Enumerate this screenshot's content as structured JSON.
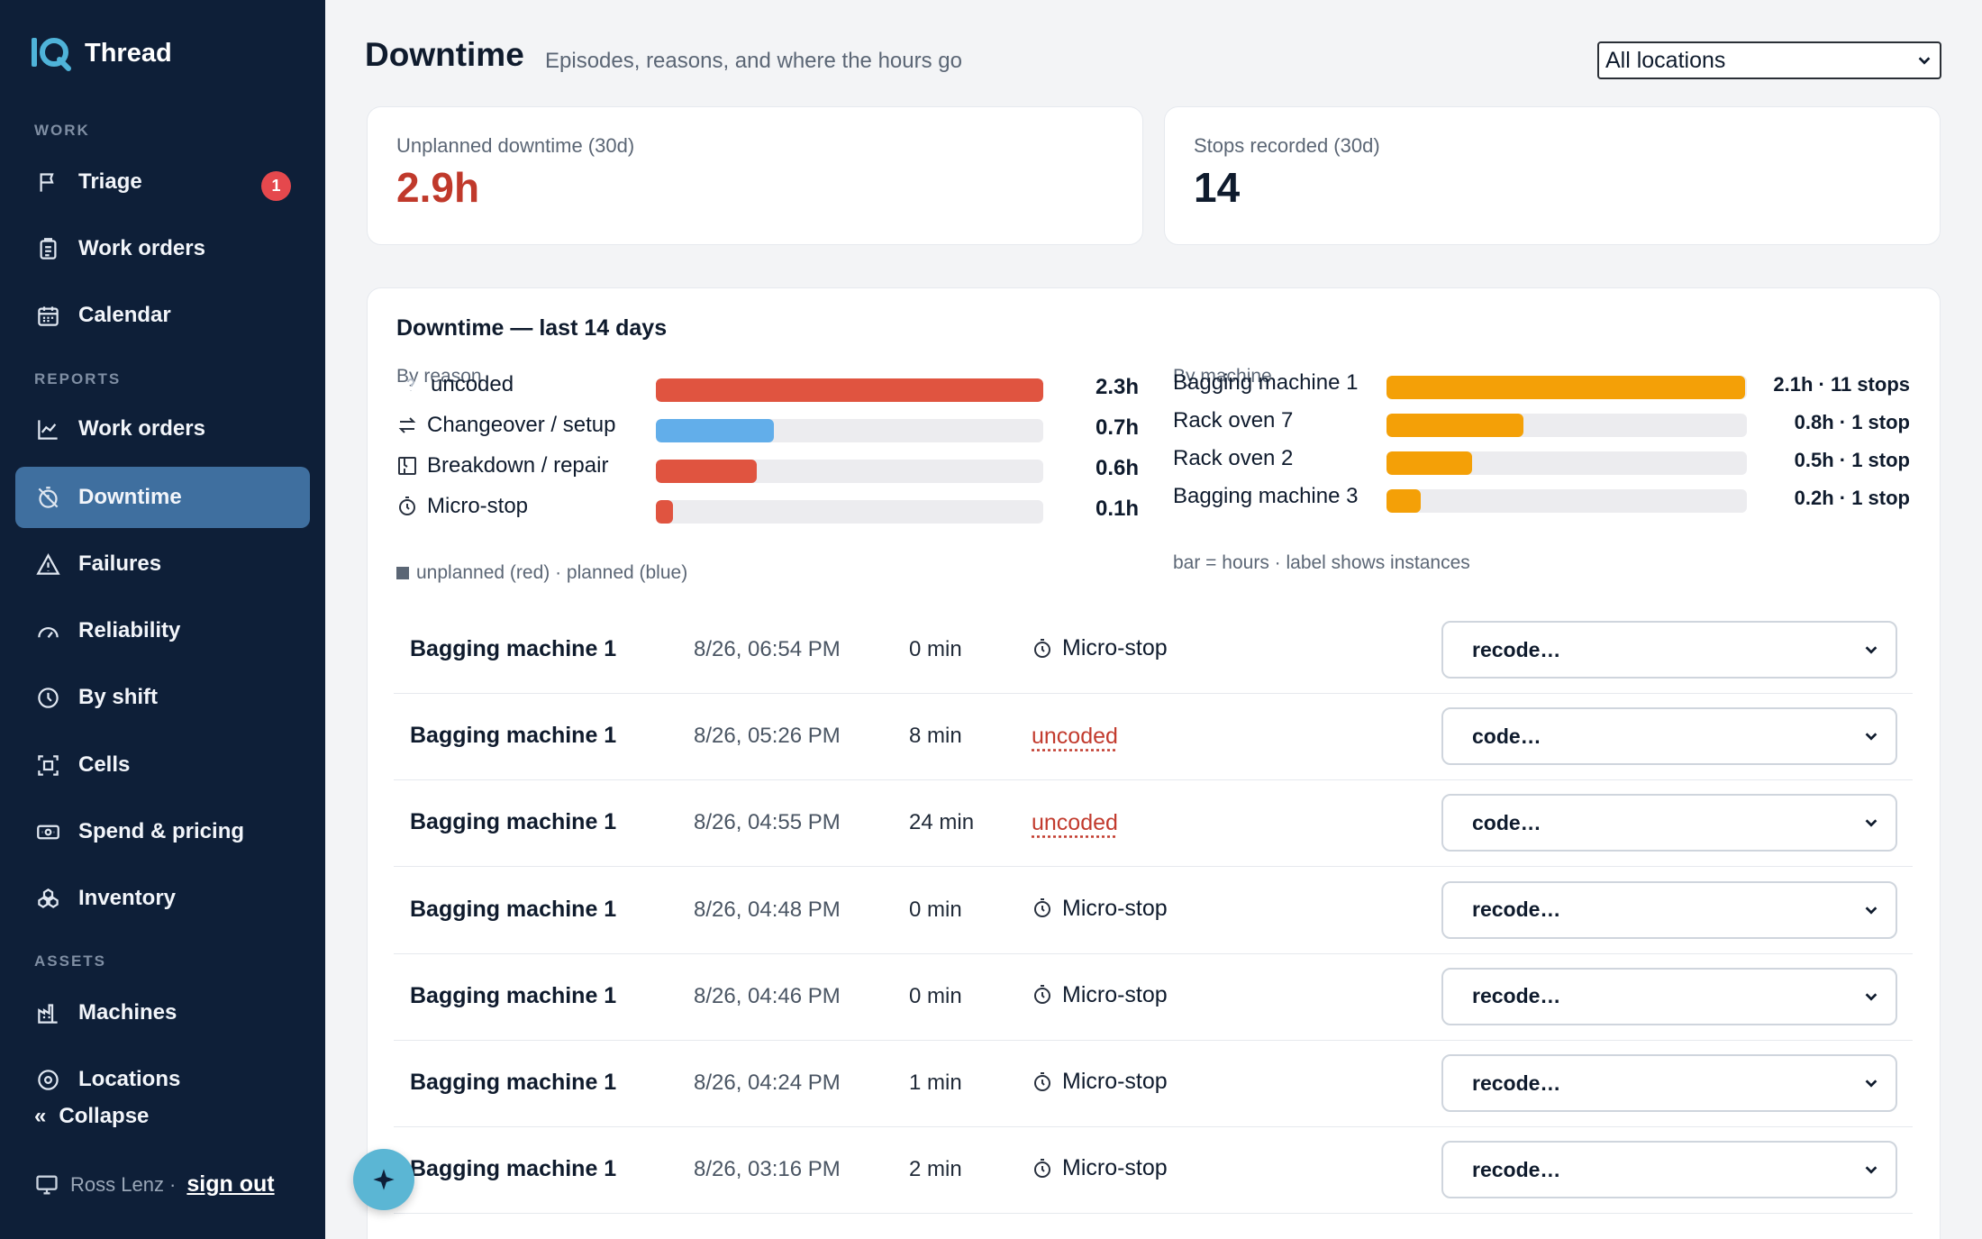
{
  "app": {
    "name": "Thread"
  },
  "sidebar": {
    "sections": {
      "work": "WORK",
      "reports": "REPORTS",
      "assets": "ASSETS"
    },
    "work_items": [
      {
        "label": "Triage",
        "icon": "flag-icon",
        "badge": "1"
      },
      {
        "label": "Work orders",
        "icon": "clipboard-icon"
      },
      {
        "label": "Calendar",
        "icon": "calendar-icon"
      }
    ],
    "report_items": [
      {
        "label": "Work orders",
        "icon": "line-chart-icon"
      },
      {
        "label": "Downtime",
        "icon": "downtime-icon",
        "active": true
      },
      {
        "label": "Failures",
        "icon": "warning-icon"
      },
      {
        "label": "Reliability",
        "icon": "gauge-icon"
      },
      {
        "label": "By shift",
        "icon": "clock-icon"
      },
      {
        "label": "Cells",
        "icon": "cells-icon"
      },
      {
        "label": "Spend & pricing",
        "icon": "money-icon"
      },
      {
        "label": "Inventory",
        "icon": "boxes-icon"
      }
    ],
    "asset_items": [
      {
        "label": "Machines",
        "icon": "factory-icon"
      },
      {
        "label": "Locations",
        "icon": "location-icon"
      }
    ],
    "collapse_label": "Collapse",
    "user_name": "Ross Lenz ·",
    "sign_out": "sign out"
  },
  "header": {
    "title": "Downtime",
    "subtitle": "Episodes, reasons, and where the hours go",
    "location_filter": "All locations"
  },
  "stats": {
    "unplanned_label": "Unplanned downtime (30d)",
    "unplanned_value": "2.9h",
    "stops_label": "Stops recorded (30d)",
    "stops_value": "14"
  },
  "breakdown": {
    "title": "Downtime — last 14 days",
    "by_reason_label": "By reason",
    "by_machine_label": "By machine",
    "reason_note": "unplanned (red) · planned (blue)",
    "machine_note": "bar = hours · label shows instances",
    "colors": {
      "unplanned": "#e05440",
      "planned": "#62aeea",
      "machine": "#f4a007"
    }
  },
  "chart_data": [
    {
      "type": "bar",
      "title": "By reason",
      "categories": [
        "uncoded",
        "Changeover / setup",
        "Breakdown / repair",
        "Micro-stop"
      ],
      "values": [
        2.3,
        0.7,
        0.6,
        0.1
      ],
      "value_labels": [
        "2.3h",
        "0.7h",
        "0.6h",
        "0.1h"
      ],
      "kinds": [
        "unplanned",
        "planned",
        "unplanned",
        "unplanned"
      ],
      "icons": [
        "question-icon",
        "swap-icon",
        "breakdown-icon",
        "stopwatch-icon"
      ],
      "xlim": [
        0,
        2.3
      ]
    },
    {
      "type": "bar",
      "title": "By machine",
      "categories": [
        "Bagging machine 1",
        "Rack oven 7",
        "Rack oven 2",
        "Bagging machine 3"
      ],
      "values": [
        2.1,
        0.8,
        0.5,
        0.2
      ],
      "value_labels": [
        "2.1h · 11 stops",
        "0.8h · 1 stop",
        "0.5h · 1 stop",
        "0.2h · 1 stop"
      ],
      "xlim": [
        0,
        2.1
      ]
    }
  ],
  "episodes": [
    {
      "machine": "Bagging machine 1",
      "time": "8/26, 06:54 PM",
      "duration": "0 min",
      "reason": "Micro-stop",
      "coded": true,
      "action": "recode…"
    },
    {
      "machine": "Bagging machine 1",
      "time": "8/26, 05:26 PM",
      "duration": "8 min",
      "reason": "uncoded",
      "coded": false,
      "action": "code…"
    },
    {
      "machine": "Bagging machine 1",
      "time": "8/26, 04:55 PM",
      "duration": "24 min",
      "reason": "uncoded",
      "coded": false,
      "action": "code…"
    },
    {
      "machine": "Bagging machine 1",
      "time": "8/26, 04:48 PM",
      "duration": "0 min",
      "reason": "Micro-stop",
      "coded": true,
      "action": "recode…"
    },
    {
      "machine": "Bagging machine 1",
      "time": "8/26, 04:46 PM",
      "duration": "0 min",
      "reason": "Micro-stop",
      "coded": true,
      "action": "recode…"
    },
    {
      "machine": "Bagging machine 1",
      "time": "8/26, 04:24 PM",
      "duration": "1 min",
      "reason": "Micro-stop",
      "coded": true,
      "action": "recode…"
    },
    {
      "machine": "Bagging machine 1",
      "time": "8/26, 03:16 PM",
      "duration": "2 min",
      "reason": "Micro-stop",
      "coded": true,
      "action": "recode…"
    }
  ]
}
